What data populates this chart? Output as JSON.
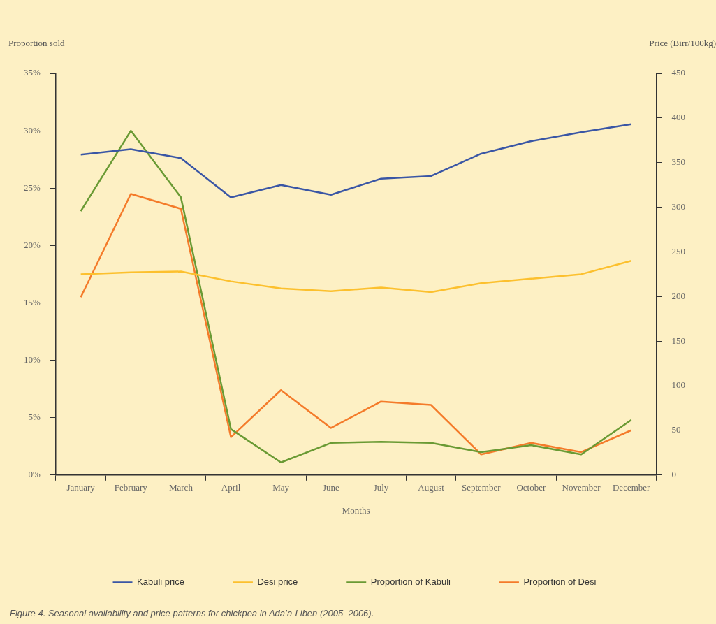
{
  "chart_data": {
    "type": "line",
    "xlabel": "Months",
    "ylabel": "Proportion sold",
    "y2label": "Price (Birr/100kg)",
    "categories": [
      "January",
      "February",
      "March",
      "April",
      "May",
      "June",
      "July",
      "August",
      "September",
      "October",
      "November",
      "December"
    ],
    "series": [
      {
        "name": "Kabuli price",
        "color": "#3a56a5",
        "axis": "y2",
        "values": [
          359,
          365,
          355,
          311,
          325,
          314,
          332,
          335,
          360,
          374,
          384,
          393
        ]
      },
      {
        "name": "Desi price",
        "color": "#fcc02e",
        "axis": "y2",
        "values": [
          225,
          227,
          228,
          217,
          209,
          206,
          210,
          205,
          215,
          220,
          225,
          240
        ]
      },
      {
        "name": "Proportion of Kabuli",
        "color": "#6a9a34",
        "values": [
          23.0,
          30.0,
          24.2,
          4.0,
          1.1,
          2.8,
          2.9,
          2.8,
          2.0,
          2.6,
          1.8,
          4.8
        ]
      },
      {
        "name": "Proportion of Desi",
        "color": "#f47b2a",
        "values": [
          15.5,
          24.5,
          23.2,
          3.3,
          7.4,
          4.1,
          6.4,
          6.1,
          1.8,
          2.8,
          2.0,
          3.9
        ]
      }
    ],
    "ylim": [
      0,
      35
    ],
    "yticks": [
      {
        "value": 0,
        "label": "0%"
      },
      {
        "value": 5,
        "label": "5%"
      },
      {
        "value": 10,
        "label": "10%"
      },
      {
        "value": 15,
        "label": "15%"
      },
      {
        "value": 20,
        "label": "20%"
      },
      {
        "value": 25,
        "label": "25%"
      },
      {
        "value": 30,
        "label": "30%"
      },
      {
        "value": 35,
        "label": "35%"
      }
    ],
    "y2lim": [
      0,
      450
    ],
    "y2ticks": [
      0,
      50,
      100,
      150,
      200,
      250,
      300,
      350,
      400,
      450
    ],
    "grid": false,
    "legend": "bottom",
    "marker": "none",
    "line_style": "solid",
    "annotations": [
      "Figure 4. Seasonal availability and price patterns for chickpea in Ada’a-Liben (2005–2006)."
    ]
  }
}
